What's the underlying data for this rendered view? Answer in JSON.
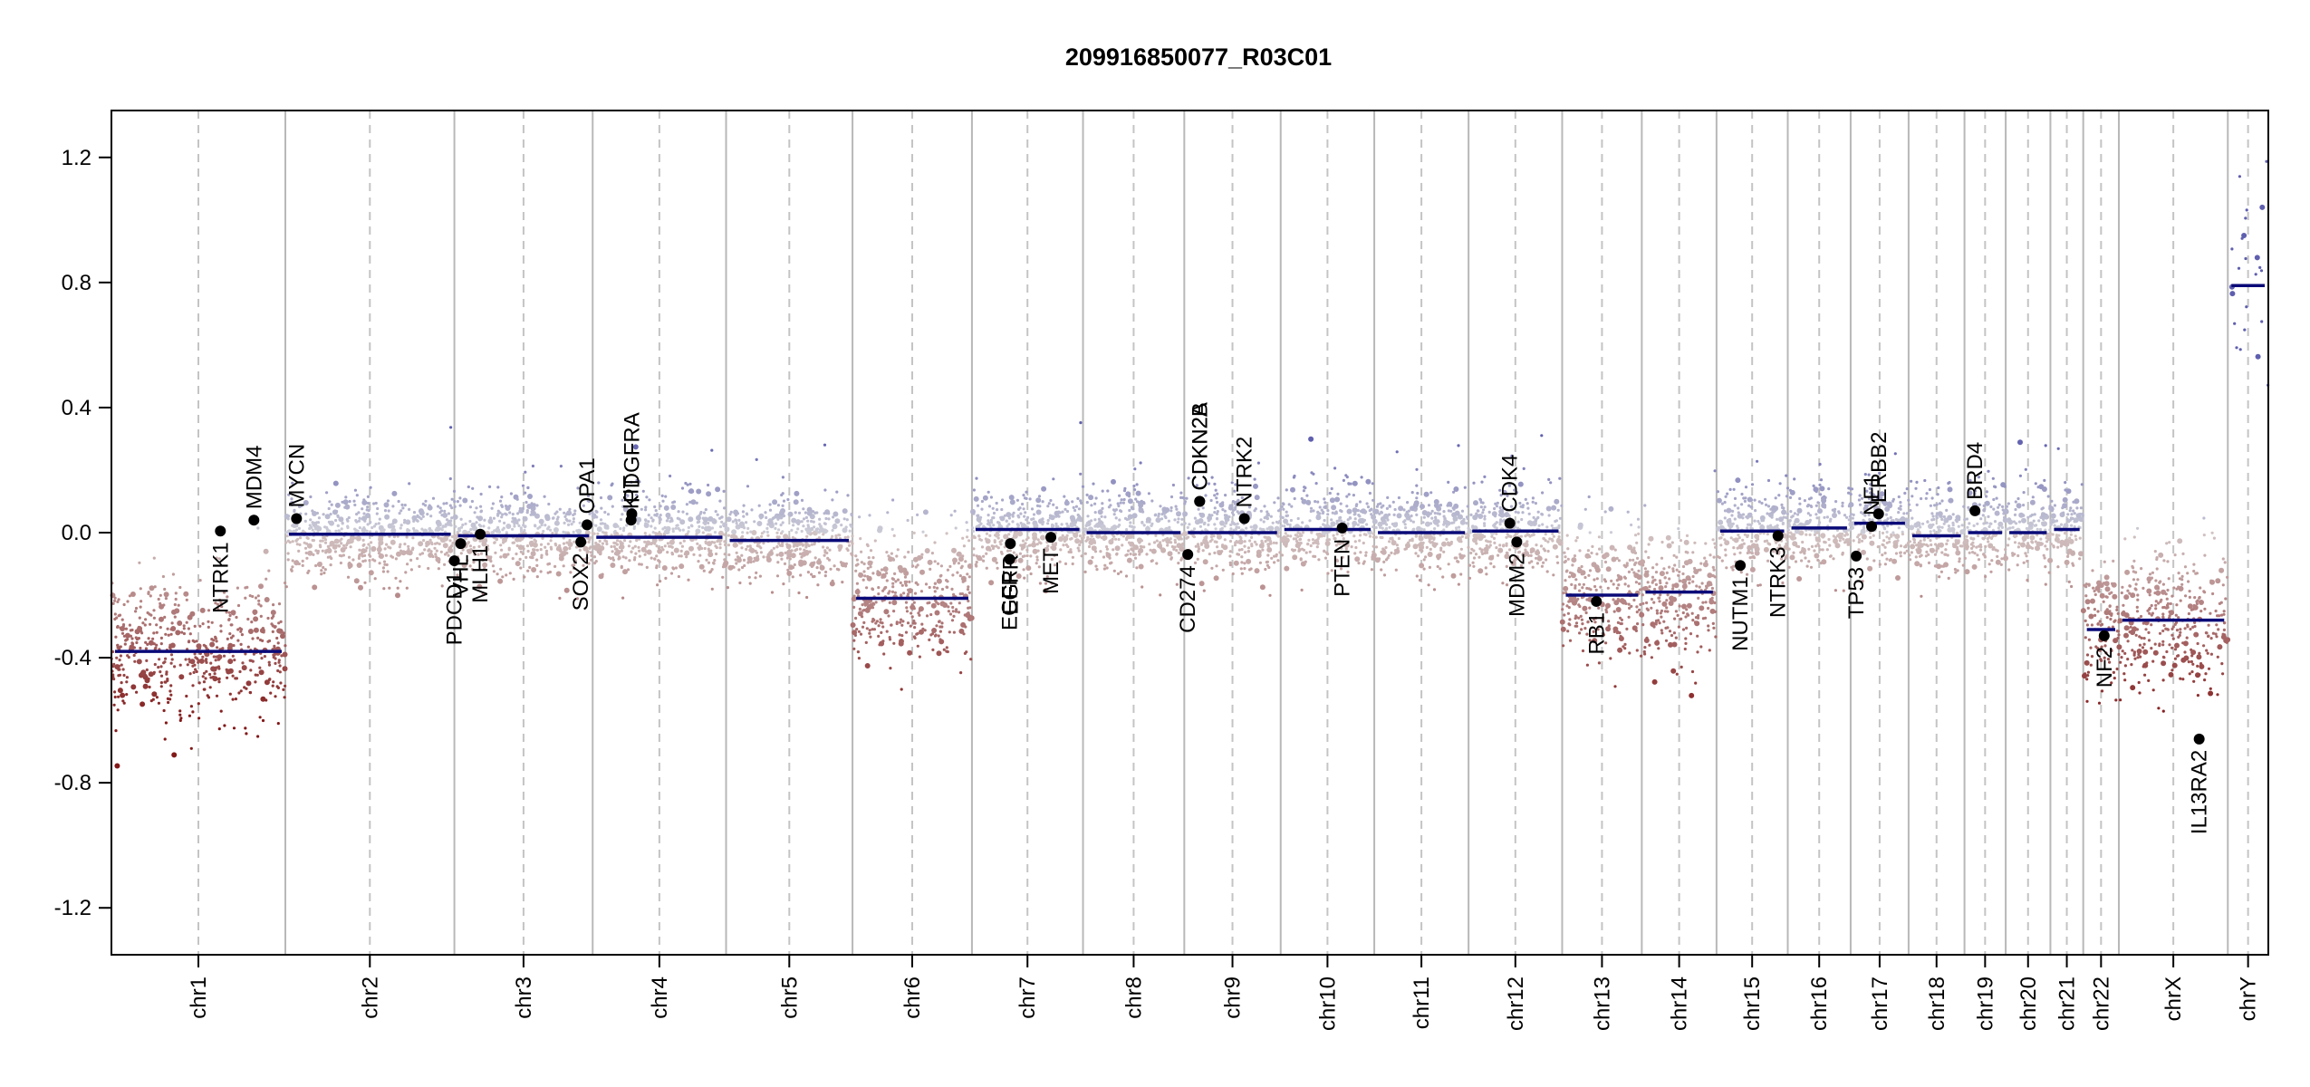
{
  "chart_data": {
    "type": "scatter",
    "title": "209916850077_R03C01",
    "xlabel": "",
    "ylabel": "",
    "ylim": [
      -1.35,
      1.35
    ],
    "yticks": [
      -1.2,
      -0.8,
      -0.4,
      0.0,
      0.4,
      0.8,
      1.2
    ],
    "ytick_labels": [
      "-1.2",
      "-0.8",
      "-0.4",
      "0.0",
      "0.4",
      "0.8",
      "1.2"
    ],
    "chromosomes": [
      {
        "name": "chr1",
        "start": 0,
        "end": 249,
        "segment": -0.38
      },
      {
        "name": "chr2",
        "start": 249,
        "end": 491,
        "segment": -0.005
      },
      {
        "name": "chr3",
        "start": 491,
        "end": 689,
        "segment": -0.01
      },
      {
        "name": "chr4",
        "start": 689,
        "end": 880,
        "segment": -0.015
      },
      {
        "name": "chr5",
        "start": 880,
        "end": 1061,
        "segment": -0.025
      },
      {
        "name": "chr6",
        "start": 1061,
        "end": 1232,
        "segment": -0.21
      },
      {
        "name": "chr7",
        "start": 1232,
        "end": 1391,
        "segment": 0.01
      },
      {
        "name": "chr8",
        "start": 1391,
        "end": 1536,
        "segment": 0.0
      },
      {
        "name": "chr9",
        "start": 1536,
        "end": 1674,
        "segment": 0.0
      },
      {
        "name": "chr10",
        "start": 1674,
        "end": 1808,
        "segment": 0.01
      },
      {
        "name": "chr11",
        "start": 1808,
        "end": 1943,
        "segment": 0.0
      },
      {
        "name": "chr12",
        "start": 1943,
        "end": 2077,
        "segment": 0.005
      },
      {
        "name": "chr13",
        "start": 2077,
        "end": 2191,
        "segment": -0.2
      },
      {
        "name": "chr14",
        "start": 2191,
        "end": 2298,
        "segment": -0.19
      },
      {
        "name": "chr15",
        "start": 2298,
        "end": 2400,
        "segment": 0.005
      },
      {
        "name": "chr16",
        "start": 2400,
        "end": 2490,
        "segment": 0.015
      },
      {
        "name": "chr17",
        "start": 2490,
        "end": 2573,
        "segment": 0.03
      },
      {
        "name": "chr18",
        "start": 2573,
        "end": 2653,
        "segment": -0.01
      },
      {
        "name": "chr19",
        "start": 2653,
        "end": 2712,
        "segment": 0.0
      },
      {
        "name": "chr20",
        "start": 2712,
        "end": 2776,
        "segment": 0.0
      },
      {
        "name": "chr21",
        "start": 2776,
        "end": 2823,
        "segment": 0.01
      },
      {
        "name": "chr22",
        "start": 2823,
        "end": 2874,
        "segment": -0.31
      },
      {
        "name": "chrX",
        "start": 2874,
        "end": 3030,
        "segment": -0.28
      },
      {
        "name": "chrY",
        "start": 3030,
        "end": 3088,
        "segment": 0.79
      }
    ],
    "genes": [
      {
        "name": "NTRK1",
        "x": 156,
        "y": 0.005
      },
      {
        "name": "MDM4",
        "x": 204,
        "y": 0.04
      },
      {
        "name": "MYCN",
        "x": 265,
        "y": 0.045
      },
      {
        "name": "PDCD1",
        "x": 491,
        "y": -0.09
      },
      {
        "name": "VHL",
        "x": 500,
        "y": -0.035
      },
      {
        "name": "MLH1",
        "x": 528,
        "y": -0.005
      },
      {
        "name": "SOX2",
        "x": 672,
        "y": -0.03
      },
      {
        "name": "OPA1",
        "x": 681,
        "y": 0.025
      },
      {
        "name": "KIT",
        "x": 744,
        "y": 0.04
      },
      {
        "name": "PDGFRA",
        "x": 745,
        "y": 0.06
      },
      {
        "name": "EGFR",
        "x": 1286,
        "y": -0.085
      },
      {
        "name": "EGFR",
        "x": 1287,
        "y": -0.035
      },
      {
        "name": "MET",
        "x": 1345,
        "y": -0.015
      },
      {
        "name": "CD274",
        "x": 1541,
        "y": -0.07
      },
      {
        "name": "CDKN2A",
        "x": 1558,
        "y": 0.1
      },
      {
        "name": "CDKN2B",
        "x": 1558,
        "y": 0.1
      },
      {
        "name": "NTRK2",
        "x": 1622,
        "y": 0.045
      },
      {
        "name": "PTEN",
        "x": 1762,
        "y": 0.015
      },
      {
        "name": "CDK4",
        "x": 2002,
        "y": 0.03
      },
      {
        "name": "MDM2",
        "x": 2012,
        "y": -0.03
      },
      {
        "name": "RB1",
        "x": 2126,
        "y": -0.22
      },
      {
        "name": "NUTM1",
        "x": 2332,
        "y": -0.105
      },
      {
        "name": "NTRK3",
        "x": 2386,
        "y": -0.01
      },
      {
        "name": "TP53",
        "x": 2498,
        "y": -0.075
      },
      {
        "name": "NF1",
        "x": 2520,
        "y": 0.02
      },
      {
        "name": "ERBB2",
        "x": 2530,
        "y": 0.06
      },
      {
        "name": "BRD4",
        "x": 2668,
        "y": 0.07
      },
      {
        "name": "NF2",
        "x": 2853,
        "y": -0.33
      },
      {
        "name": "IL13RA2",
        "x": 2989,
        "y": -0.66
      }
    ]
  }
}
